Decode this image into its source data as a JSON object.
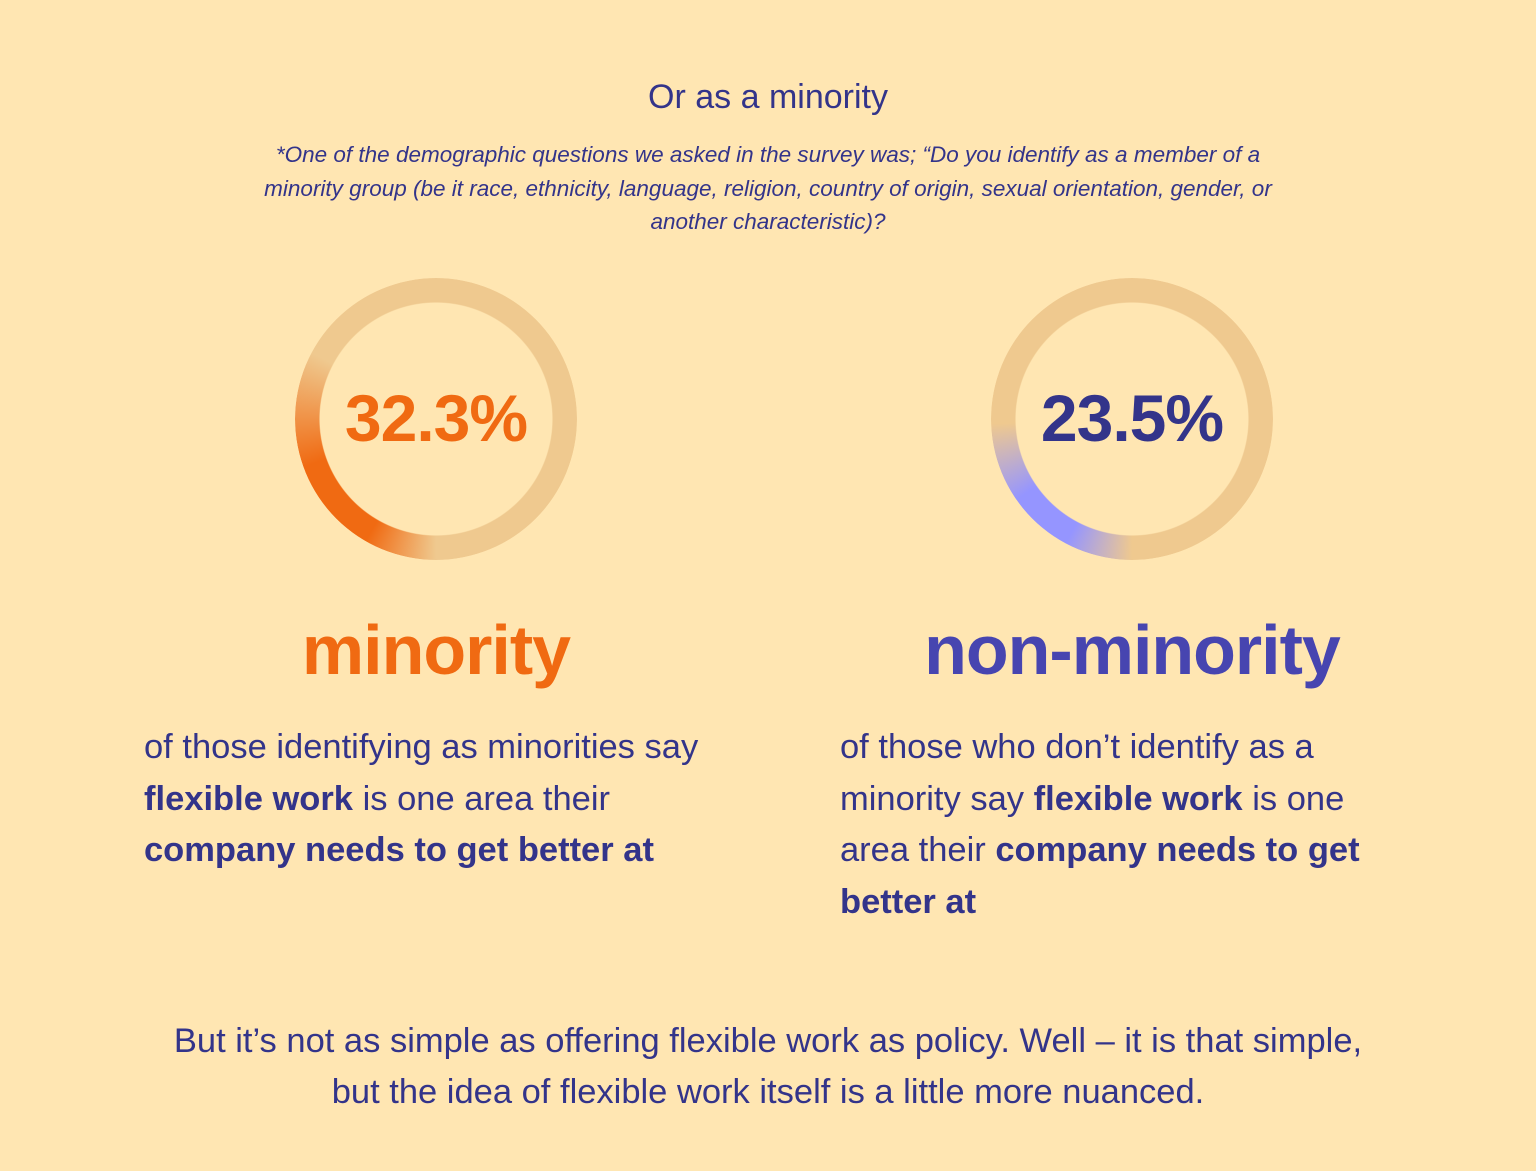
{
  "header": {
    "title": "Or as a minority",
    "note": "*One of the demographic questions we asked in the survey was; “Do you identify as a member of a minority group (be it race, ethnicity, language, religion, country of origin, sexual orientation, gender, or another characteristic)?"
  },
  "colors": {
    "background": "#FFE6B2",
    "track": "#EFC98F",
    "orange": "#F06A12",
    "navy": "#33348A",
    "periwinkle": "#9595FF"
  },
  "chart_data": [
    {
      "type": "pie",
      "style": "donut-gauge",
      "value": 32.3,
      "unit": "%",
      "label": "32.3%",
      "color": "#F06A12"
    },
    {
      "type": "pie",
      "style": "donut-gauge",
      "value": 23.5,
      "unit": "%",
      "label": "23.5%",
      "color": "#9595FF"
    }
  ],
  "left": {
    "heading": "minority",
    "desc": [
      {
        "t": "of those identifying as minorities say ",
        "b": false
      },
      {
        "t": "flexible work",
        "b": true
      },
      {
        "t": " is one area their ",
        "b": false
      },
      {
        "t": "company needs to get better at",
        "b": true
      }
    ]
  },
  "right": {
    "heading": "non-minority",
    "desc": [
      {
        "t": "of those who don’t identify as a minority say ",
        "b": false
      },
      {
        "t": "flexible work",
        "b": true
      },
      {
        "t": " is one area their ",
        "b": false
      },
      {
        "t": "company needs to get better at",
        "b": true
      }
    ]
  },
  "footer": "But it’s not as simple as offering flexible work as policy. Well – it is that simple, but the idea of flexible work itself is a little more nuanced."
}
